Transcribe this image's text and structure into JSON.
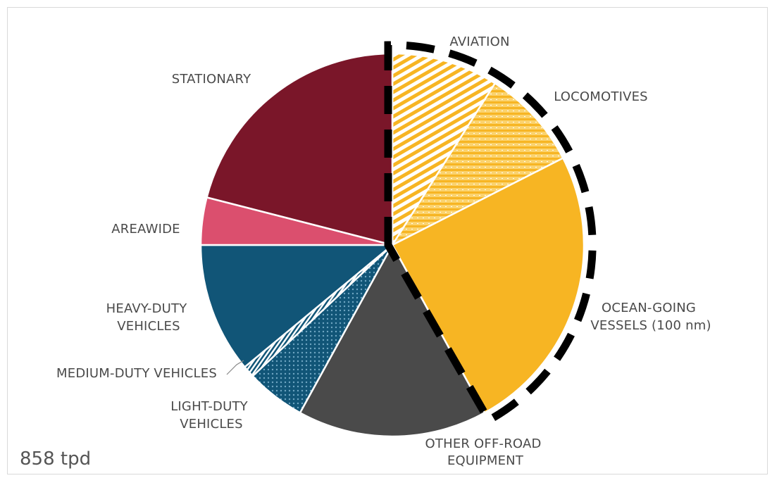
{
  "total_label": "858 tpd",
  "chart_data": {
    "type": "pie",
    "title": "",
    "unit": "tpd",
    "total": 858,
    "slices": [
      {
        "label": "AVIATION",
        "value": 0.09,
        "color": "#fbc02d",
        "pattern": "diagonal-hatch",
        "highlight": true
      },
      {
        "label": "LOCOMOTIVES",
        "value": 0.085,
        "color": "#fbc02d",
        "pattern": "horizontal-hatch",
        "highlight": true
      },
      {
        "label": "OCEAN-GOING VESSELS (100 nm)",
        "value": 0.245,
        "color": "#f7b523",
        "pattern": "solid",
        "highlight": true
      },
      {
        "label": "OTHER OFF-ROAD EQUIPMENT",
        "value": 0.16,
        "color": "#4a4a4a",
        "pattern": "solid",
        "highlight": false
      },
      {
        "label": "LIGHT-DUTY VEHICLES",
        "value": 0.05,
        "color": "#115577",
        "pattern": "dots",
        "highlight": false
      },
      {
        "label": "MEDIUM-DUTY VEHICLES",
        "value": 0.01,
        "color": "#115577",
        "pattern": "vertical-hatch",
        "highlight": false
      },
      {
        "label": "HEAVY-DUTY VEHICLES",
        "value": 0.11,
        "color": "#115577",
        "pattern": "solid",
        "highlight": false
      },
      {
        "label": "AREAWIDE",
        "value": 0.04,
        "color": "#db4f6e",
        "pattern": "solid",
        "highlight": false
      },
      {
        "label": "STATIONARY",
        "value": 0.21,
        "color": "#7a1629",
        "pattern": "solid",
        "highlight": false
      }
    ],
    "highlight_group": [
      "AVIATION",
      "LOCOMOTIVES",
      "OCEAN-GOING VESSELS (100 nm)"
    ]
  },
  "labels": {
    "aviation": [
      "AVIATION"
    ],
    "locomotives": [
      "LOCOMOTIVES"
    ],
    "ocean": [
      "OCEAN-GOING",
      "VESSELS (100 nm)"
    ],
    "offroad": [
      "OTHER OFF-ROAD",
      "EQUIPMENT"
    ],
    "light": [
      "LIGHT-DUTY",
      "VEHICLES"
    ],
    "medium": [
      "MEDIUM-DUTY VEHICLES"
    ],
    "heavy": [
      "HEAVY-DUTY",
      "VEHICLES"
    ],
    "areawide": [
      "AREAWIDE"
    ],
    "stationary": [
      "STATIONARY"
    ]
  }
}
